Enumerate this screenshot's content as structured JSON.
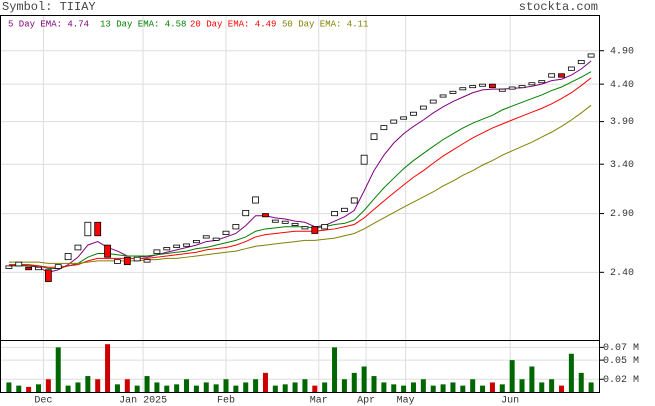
{
  "chart_data": {
    "type": "candlestick",
    "log_scale": true,
    "grid": true,
    "title": "Symbol: TIIAY",
    "source": "stockta.com",
    "x": [
      0,
      1,
      2,
      3,
      4,
      5,
      6,
      7,
      8,
      9,
      10,
      11,
      12,
      13,
      14,
      15,
      16,
      17,
      18,
      19,
      20,
      21,
      22,
      23,
      24,
      25,
      26,
      27,
      28,
      29,
      30,
      31,
      32,
      33,
      34,
      35,
      36,
      37,
      38,
      39,
      40,
      41,
      42,
      43,
      44,
      45,
      46,
      47,
      48,
      49,
      50,
      51,
      52,
      53,
      54,
      55,
      56,
      57,
      58,
      59
    ],
    "xlim": [
      -0.8,
      59.8
    ],
    "xticks": [
      {
        "value": 3.5,
        "label": "Dec"
      },
      {
        "value": 13.6,
        "label": "Jan 2025"
      },
      {
        "value": 22.0,
        "label": "Feb"
      },
      {
        "value": 31.4,
        "label": "Mar"
      },
      {
        "value": 36.2,
        "label": "Apr"
      },
      {
        "value": 40.2,
        "label": "May"
      },
      {
        "value": 50.8,
        "label": "Jun"
      }
    ],
    "ylim": [
      1.93,
      5.48
    ],
    "yticks": [
      {
        "value": 4.9,
        "label": "4.90"
      },
      {
        "value": 4.4,
        "label": "4.40"
      },
      {
        "value": 3.9,
        "label": "3.90"
      },
      {
        "value": 3.4,
        "label": "3.40"
      },
      {
        "value": 2.9,
        "label": "2.90"
      },
      {
        "value": 2.4,
        "label": "2.40"
      }
    ],
    "up_color": "#ffffff",
    "down_color": "#ff0000",
    "open": [
      2.43,
      2.45,
      2.44,
      2.42,
      2.42,
      2.43,
      2.5,
      2.58,
      2.7,
      2.82,
      2.62,
      2.47,
      2.52,
      2.49,
      2.48,
      2.55,
      2.58,
      2.6,
      2.61,
      2.64,
      2.68,
      2.66,
      2.71,
      2.76,
      2.88,
      3.0,
      2.9,
      2.82,
      2.81,
      2.79,
      2.76,
      2.78,
      2.76,
      2.88,
      2.92,
      3.0,
      3.4,
      3.68,
      3.8,
      3.88,
      3.93,
      3.98,
      4.06,
      4.14,
      4.22,
      4.27,
      4.32,
      4.35,
      4.37,
      4.4,
      4.3,
      4.33,
      4.35,
      4.39,
      4.42,
      4.5,
      4.55,
      4.6,
      4.7,
      4.8
    ],
    "close": [
      2.45,
      2.48,
      2.42,
      2.44,
      2.33,
      2.46,
      2.55,
      2.62,
      2.82,
      2.7,
      2.52,
      2.5,
      2.46,
      2.52,
      2.5,
      2.58,
      2.6,
      2.62,
      2.63,
      2.66,
      2.7,
      2.68,
      2.74,
      2.8,
      2.93,
      3.06,
      2.87,
      2.84,
      2.83,
      2.81,
      2.78,
      2.72,
      2.8,
      2.92,
      2.95,
      3.05,
      3.5,
      3.75,
      3.85,
      3.92,
      3.96,
      4.02,
      4.1,
      4.18,
      4.25,
      4.3,
      4.35,
      4.38,
      4.4,
      4.35,
      4.33,
      4.36,
      4.38,
      4.42,
      4.45,
      4.55,
      4.5,
      4.65,
      4.75,
      4.85
    ],
    "series": [
      {
        "name": "5 Day EMA: 4.74",
        "color": "#800080",
        "values": [
          2.45,
          2.46,
          2.45,
          2.44,
          2.4,
          2.42,
          2.46,
          2.52,
          2.62,
          2.65,
          2.6,
          2.57,
          2.53,
          2.53,
          2.52,
          2.54,
          2.56,
          2.58,
          2.6,
          2.62,
          2.65,
          2.66,
          2.69,
          2.72,
          2.79,
          2.88,
          2.88,
          2.86,
          2.85,
          2.83,
          2.82,
          2.78,
          2.79,
          2.83,
          2.87,
          2.93,
          3.12,
          3.33,
          3.5,
          3.64,
          3.75,
          3.84,
          3.92,
          4.01,
          4.09,
          4.16,
          4.22,
          4.28,
          4.32,
          4.33,
          4.33,
          4.34,
          4.35,
          4.37,
          4.4,
          4.45,
          4.47,
          4.53,
          4.62,
          4.74
        ]
      },
      {
        "name": "13 Day EMA: 4.58",
        "color": "#008000",
        "values": [
          2.45,
          2.45,
          2.45,
          2.45,
          2.43,
          2.43,
          2.45,
          2.47,
          2.52,
          2.55,
          2.55,
          2.54,
          2.53,
          2.53,
          2.53,
          2.54,
          2.55,
          2.56,
          2.57,
          2.59,
          2.6,
          2.62,
          2.64,
          2.66,
          2.69,
          2.74,
          2.76,
          2.77,
          2.78,
          2.78,
          2.78,
          2.77,
          2.78,
          2.8,
          2.81,
          2.84,
          2.93,
          3.04,
          3.15,
          3.25,
          3.35,
          3.44,
          3.52,
          3.6,
          3.68,
          3.75,
          3.82,
          3.88,
          3.93,
          3.98,
          4.05,
          4.1,
          4.15,
          4.2,
          4.25,
          4.31,
          4.36,
          4.43,
          4.5,
          4.58
        ]
      },
      {
        "name": "20 Day EMA: 4.49",
        "color": "#ff0000",
        "values": [
          2.46,
          2.46,
          2.46,
          2.45,
          2.44,
          2.44,
          2.45,
          2.46,
          2.49,
          2.51,
          2.51,
          2.51,
          2.51,
          2.51,
          2.51,
          2.52,
          2.53,
          2.54,
          2.55,
          2.56,
          2.58,
          2.59,
          2.6,
          2.62,
          2.65,
          2.69,
          2.71,
          2.72,
          2.73,
          2.74,
          2.74,
          2.74,
          2.75,
          2.76,
          2.78,
          2.8,
          2.86,
          2.94,
          3.02,
          3.1,
          3.18,
          3.26,
          3.33,
          3.41,
          3.49,
          3.56,
          3.63,
          3.7,
          3.76,
          3.82,
          3.87,
          3.92,
          3.97,
          4.02,
          4.07,
          4.13,
          4.2,
          4.28,
          4.38,
          4.49
        ]
      },
      {
        "name": "50 Day EMA: 4.11",
        "color": "#808000",
        "values": [
          2.48,
          2.48,
          2.48,
          2.48,
          2.47,
          2.47,
          2.47,
          2.47,
          2.48,
          2.49,
          2.49,
          2.49,
          2.49,
          2.49,
          2.5,
          2.5,
          2.51,
          2.51,
          2.52,
          2.53,
          2.54,
          2.55,
          2.56,
          2.57,
          2.59,
          2.61,
          2.62,
          2.63,
          2.64,
          2.65,
          2.66,
          2.66,
          2.67,
          2.68,
          2.7,
          2.72,
          2.76,
          2.81,
          2.86,
          2.91,
          2.96,
          3.01,
          3.06,
          3.11,
          3.17,
          3.22,
          3.28,
          3.33,
          3.39,
          3.44,
          3.5,
          3.55,
          3.6,
          3.65,
          3.71,
          3.77,
          3.84,
          3.92,
          4.01,
          4.11
        ]
      }
    ],
    "volume": {
      "up_color": "#006600",
      "down_color": "#cc0000",
      "ylim": [
        0,
        0.08
      ],
      "yticks": [
        {
          "value": 0.07,
          "label": "0.07 M"
        },
        {
          "value": 0.05,
          "label": "0.05 M"
        },
        {
          "value": 0.02,
          "label": "0.02 M"
        }
      ],
      "values": [
        0.015,
        0.01,
        0.008,
        0.012,
        0.02,
        0.07,
        0.01,
        0.015,
        0.025,
        0.02,
        0.075,
        0.012,
        0.02,
        0.01,
        0.025,
        0.015,
        0.01,
        0.012,
        0.02,
        0.01,
        0.015,
        0.012,
        0.02,
        0.01,
        0.015,
        0.02,
        0.03,
        0.01,
        0.012,
        0.015,
        0.02,
        0.01,
        0.015,
        0.07,
        0.02,
        0.03,
        0.04,
        0.025,
        0.015,
        0.012,
        0.01,
        0.015,
        0.02,
        0.01,
        0.012,
        0.015,
        0.01,
        0.02,
        0.01,
        0.015,
        0.012,
        0.05,
        0.02,
        0.04,
        0.015,
        0.02,
        0.01,
        0.06,
        0.03,
        0.015
      ]
    }
  }
}
